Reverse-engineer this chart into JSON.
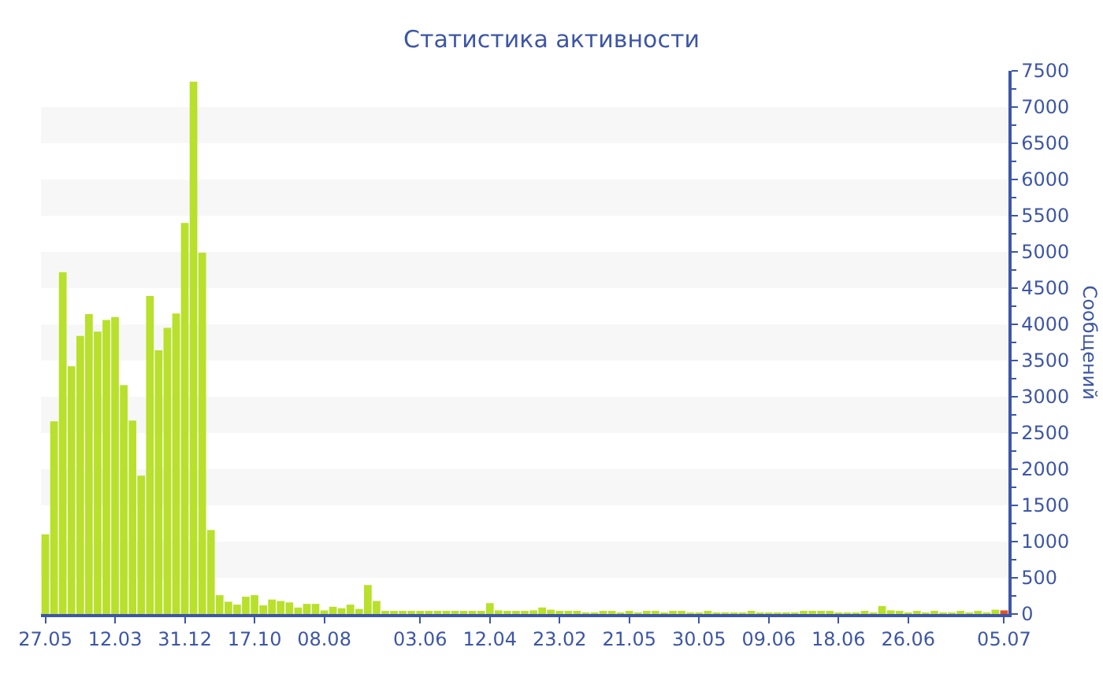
{
  "chart_data": {
    "type": "bar",
    "title": "Статистика активности",
    "ylabel": "Сообщений",
    "categories": [
      "27.05",
      null,
      null,
      null,
      null,
      null,
      null,
      null,
      "12.03",
      null,
      null,
      null,
      null,
      null,
      null,
      null,
      "31.12",
      null,
      null,
      null,
      null,
      null,
      null,
      null,
      "17.10",
      null,
      null,
      null,
      null,
      null,
      null,
      null,
      "08.08",
      null,
      null,
      null,
      null,
      null,
      null,
      null,
      null,
      null,
      null,
      "03.06",
      null,
      null,
      null,
      null,
      null,
      null,
      null,
      "12.04",
      null,
      null,
      null,
      null,
      null,
      null,
      null,
      "23.02",
      null,
      null,
      null,
      null,
      null,
      null,
      null,
      "21.05",
      null,
      null,
      null,
      null,
      null,
      null,
      null,
      "30.05",
      null,
      null,
      null,
      null,
      null,
      null,
      null,
      "09.06",
      null,
      null,
      null,
      null,
      null,
      null,
      null,
      "18.06",
      null,
      null,
      null,
      null,
      null,
      null,
      null,
      "26.06",
      null,
      null,
      null,
      null,
      null,
      null,
      null,
      null,
      null,
      null,
      "05.07"
    ],
    "values": [
      1100,
      2660,
      4720,
      3420,
      3840,
      4140,
      3900,
      4060,
      4100,
      3160,
      2670,
      1910,
      4390,
      3640,
      3950,
      4150,
      5400,
      7350,
      4990,
      1160,
      260,
      170,
      130,
      240,
      260,
      120,
      200,
      180,
      160,
      90,
      140,
      140,
      50,
      100,
      80,
      130,
      70,
      400,
      180,
      40,
      30,
      40,
      30,
      30,
      40,
      30,
      30,
      30,
      30,
      30,
      30,
      150,
      50,
      30,
      30,
      40,
      50,
      90,
      60,
      30,
      30,
      30,
      20,
      20,
      30,
      30,
      20,
      30,
      20,
      30,
      30,
      20,
      30,
      40,
      20,
      20,
      30,
      20,
      20,
      20,
      20,
      30,
      20,
      20,
      20,
      20,
      20,
      30,
      30,
      30,
      40,
      20,
      20,
      20,
      30,
      20,
      110,
      50,
      30,
      20,
      30,
      20,
      30,
      20,
      20,
      30,
      20,
      30,
      20,
      60,
      50
    ],
    "colors": [
      "#b8e02c",
      "#b8e02c",
      "#b8e02c",
      "#b8e02c",
      "#b8e02c",
      "#b8e02c",
      "#b8e02c",
      "#b8e02c",
      "#b8e02c",
      "#b8e02c",
      "#b8e02c",
      "#b8e02c",
      "#b8e02c",
      "#b8e02c",
      "#b8e02c",
      "#b8e02c",
      "#b8e02c",
      "#b8e02c",
      "#b8e02c",
      "#b8e02c",
      "#b8e02c",
      "#b8e02c",
      "#b8e02c",
      "#b8e02c",
      "#b8e02c",
      "#b8e02c",
      "#b8e02c",
      "#b8e02c",
      "#b8e02c",
      "#b8e02c",
      "#b8e02c",
      "#b8e02c",
      "#b8e02c",
      "#b8e02c",
      "#b8e02c",
      "#b8e02c",
      "#b8e02c",
      "#b8e02c",
      "#b8e02c",
      "#b8e02c",
      "#b8e02c",
      "#b8e02c",
      "#b8e02c",
      "#b8e02c",
      "#b8e02c",
      "#b8e02c",
      "#b8e02c",
      "#b8e02c",
      "#b8e02c",
      "#b8e02c",
      "#b8e02c",
      "#b8e02c",
      "#b8e02c",
      "#b8e02c",
      "#b8e02c",
      "#b8e02c",
      "#b8e02c",
      "#b8e02c",
      "#b8e02c",
      "#b8e02c",
      "#b8e02c",
      "#b8e02c",
      "#b8e02c",
      "#b8e02c",
      "#b8e02c",
      "#b8e02c",
      "#b8e02c",
      "#b8e02c",
      "#b8e02c",
      "#b8e02c",
      "#b8e02c",
      "#b8e02c",
      "#b8e02c",
      "#b8e02c",
      "#b8e02c",
      "#b8e02c",
      "#b8e02c",
      "#b8e02c",
      "#b8e02c",
      "#b8e02c",
      "#b8e02c",
      "#b8e02c",
      "#b8e02c",
      "#b8e02c",
      "#b8e02c",
      "#b8e02c",
      "#b8e02c",
      "#b8e02c",
      "#b8e02c",
      "#b8e02c",
      "#b8e02c",
      "#b8e02c",
      "#b8e02c",
      "#b8e02c",
      "#b8e02c",
      "#b8e02c",
      "#b8e02c",
      "#b8e02c",
      "#b8e02c",
      "#b8e02c",
      "#b8e02c",
      "#b8e02c",
      "#b8e02c",
      "#b8e02c",
      "#b8e02c",
      "#b8e02c",
      "#b8e02c",
      "#b8e02c",
      "#b8e02c",
      "#b8e02c",
      "#e0502a"
    ],
    "ylim": [
      0,
      7500
    ],
    "yticks": [
      0,
      500,
      1000,
      1500,
      2000,
      2500,
      3000,
      3500,
      4000,
      4500,
      5000,
      5500,
      6000,
      6500,
      7000,
      7500
    ],
    "bands": [
      {
        "axis": "y",
        "from": 500,
        "to": 1000,
        "color": "#f7f7f7"
      },
      {
        "axis": "y",
        "from": 1500,
        "to": 2000,
        "color": "#f7f7f7"
      },
      {
        "axis": "y",
        "from": 2500,
        "to": 3000,
        "color": "#f7f7f7"
      },
      {
        "axis": "y",
        "from": 3500,
        "to": 4000,
        "color": "#f7f7f7"
      },
      {
        "axis": "y",
        "from": 4500,
        "to": 5000,
        "color": "#f7f7f7"
      },
      {
        "axis": "y",
        "from": 5500,
        "to": 6000,
        "color": "#f7f7f7"
      },
      {
        "axis": "y",
        "from": 6500,
        "to": 7000,
        "color": "#f7f7f7"
      }
    ]
  }
}
